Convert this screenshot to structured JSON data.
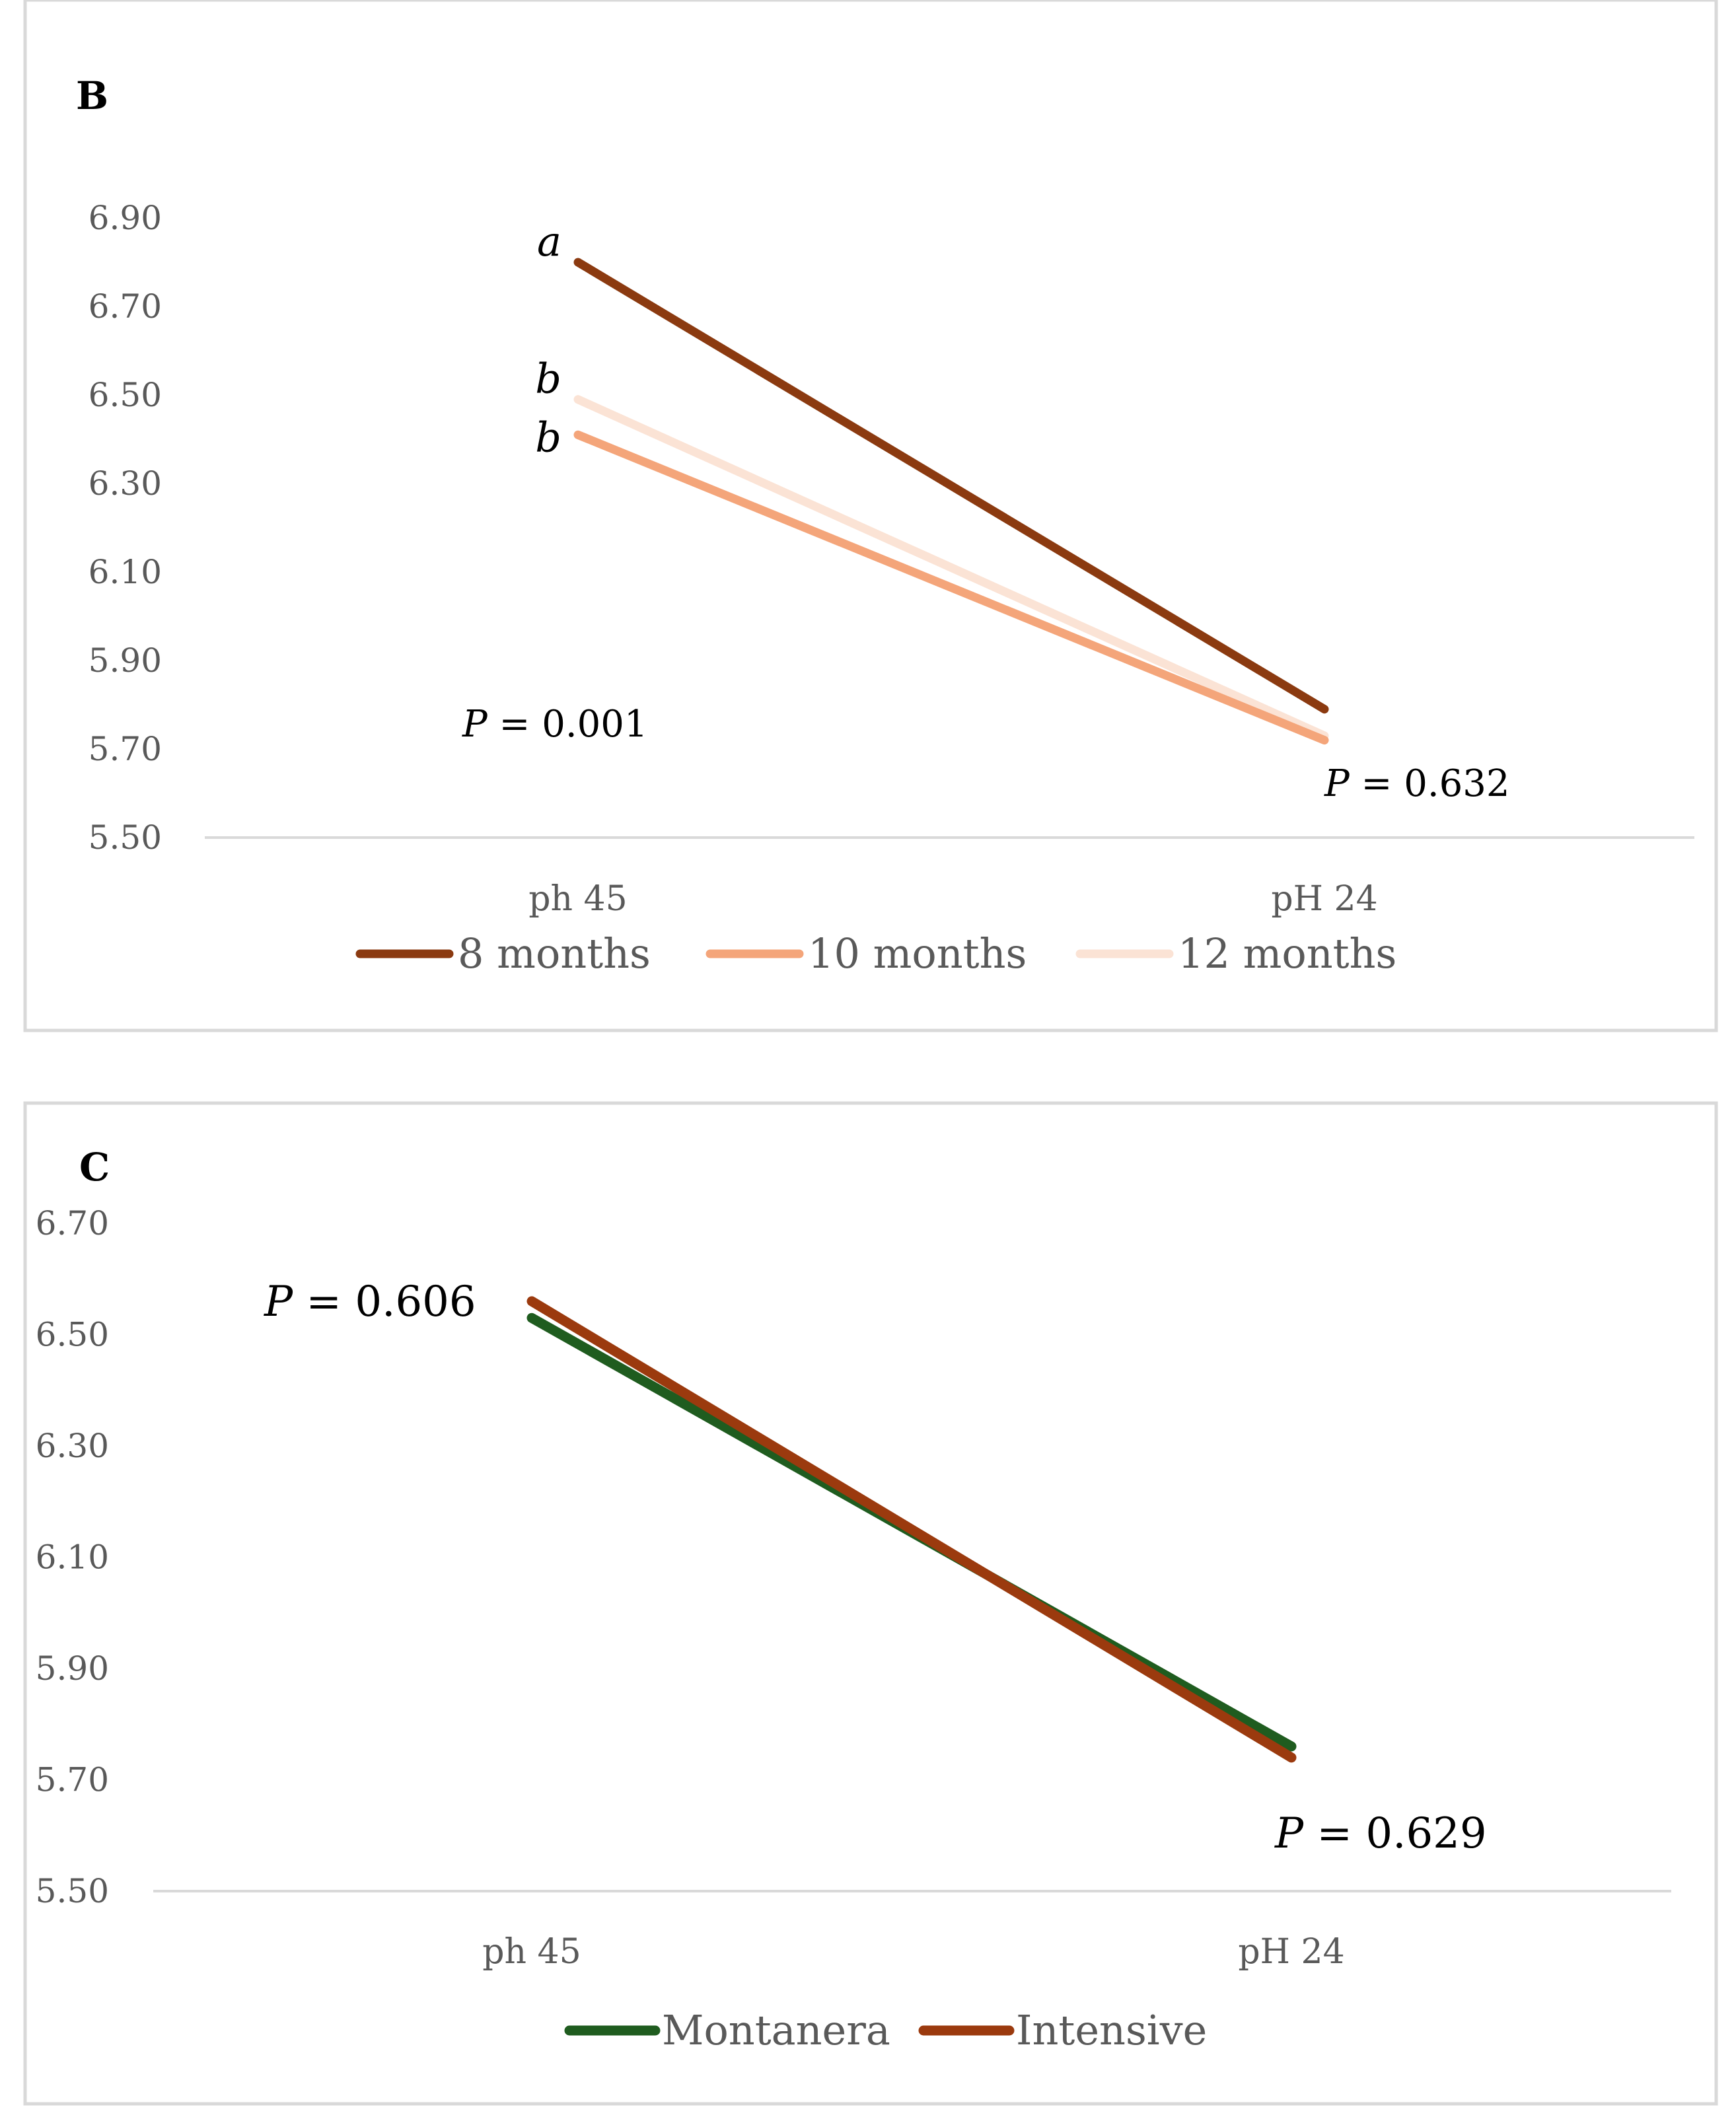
{
  "chart_data": [
    {
      "panel": "B",
      "type": "line",
      "categories": [
        "ph 45",
        "pH 24"
      ],
      "series": [
        {
          "name": "8 months",
          "values": [
            6.8,
            5.79
          ],
          "color": "#8B3A10"
        },
        {
          "name": "10 months",
          "values": [
            6.41,
            5.72
          ],
          "color": "#F4A57A"
        },
        {
          "name": "12 months",
          "values": [
            6.49,
            5.73
          ],
          "color": "#FBE3D5"
        }
      ],
      "ylim": [
        5.5,
        6.9
      ],
      "yticks": [
        "6.90",
        "6.70",
        "6.50",
        "6.30",
        "6.10",
        "5.90",
        "5.70",
        "5.50"
      ],
      "significance_letters": [
        {
          "series": "8 months",
          "category": "ph 45",
          "letter": "a"
        },
        {
          "series": "12 months",
          "category": "ph 45",
          "letter": "b"
        },
        {
          "series": "10 months",
          "category": "ph 45",
          "letter": "b"
        }
      ],
      "p_values": [
        {
          "category": "ph 45",
          "label": "P",
          "value": " = 0.001"
        },
        {
          "category": "pH 24",
          "label": "P",
          "value": " = 0.632"
        }
      ],
      "legend_position": "bottom"
    },
    {
      "panel": "C",
      "type": "line",
      "categories": [
        "ph 45",
        "pH 24"
      ],
      "series": [
        {
          "name": "Montanera",
          "values": [
            6.53,
            5.76
          ],
          "color": "#1F5C1F"
        },
        {
          "name": "Intensive",
          "values": [
            6.56,
            5.74
          ],
          "color": "#9B3A0E"
        }
      ],
      "ylim": [
        5.5,
        6.7
      ],
      "yticks": [
        "6.70",
        "6.50",
        "6.30",
        "6.10",
        "5.90",
        "5.70",
        "5.50"
      ],
      "p_values": [
        {
          "category": "ph 45",
          "label": "P",
          "value": " = 0.606"
        },
        {
          "category": "pH 24",
          "label": "P",
          "value": " = 0.629"
        }
      ],
      "legend_position": "bottom"
    }
  ]
}
